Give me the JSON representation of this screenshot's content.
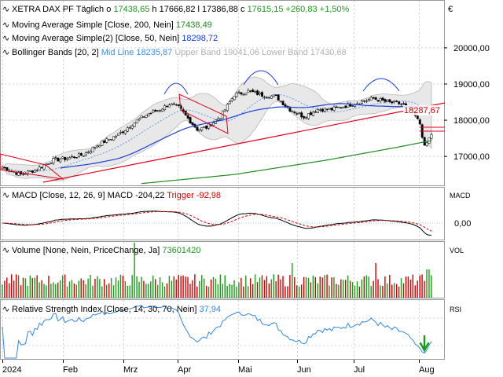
{
  "price_panel": {
    "symbol": "XETRA DAX PF",
    "period": "Täglich",
    "o_label": "o",
    "o": "17438,65",
    "h_label": "h",
    "h": "17666,82",
    "l_label": "l",
    "l": "17386,88",
    "c_label": "c",
    "c": "17615,15",
    "change": "+260,83",
    "change_pct": "+1,50%",
    "currency": "€",
    "ma200_label": "Moving Average Simple [Close, 200, Nein]",
    "ma200_value": "17438,49",
    "ma50_label": "Moving Average Simple(2) [Close, 50, Nein]",
    "ma50_value": "18298,72",
    "bb_label": "Bollinger Bands [20, 2]",
    "bb_mid": "Mid Line 18235,87",
    "bb_upper": "Upper Band 19041,06",
    "bb_lower": "Lower Band 17430,68",
    "price_tag": "18287,67"
  },
  "macd_panel": {
    "label": "MACD [Close, 12, 26, 9]",
    "macd_value": "MACD -204,22",
    "trigger_value": "Trigger -92,98",
    "axis_name": "MACD"
  },
  "volume_panel": {
    "label": "Volume [None, Nein, PriceChange, Ja]",
    "value": "73601420",
    "axis_name": "VOL"
  },
  "rsi_panel": {
    "label": "Relative Strength Index [Close, 14, 30, 70, Nein]",
    "value": "37,94",
    "axis_name": "RSI"
  },
  "colors": {
    "up": "#1a9c1a",
    "down": "#d40000",
    "ma200": "#1f8a1f",
    "ma50": "#1a3fd6",
    "trend": "#e0001a",
    "bb_mid": "#3a8ee6",
    "bb_band": "#c8c8c8",
    "macd": "#000000",
    "trigger": "#d40000",
    "rsi": "#2f86e6",
    "axis_text": "#000000"
  },
  "chart_data": {
    "type": "line",
    "x_ticks": [
      "2024",
      "Feb",
      "Mrz",
      "Apr",
      "Mai",
      "Jun",
      "Jul",
      "Aug"
    ],
    "price_axis": {
      "ticks": [
        "20000,00",
        "19000,00",
        "18000,00",
        "17000,00"
      ],
      "tick_values": [
        20000,
        19000,
        18000,
        17000
      ],
      "ylim": [
        16200,
        21300
      ]
    },
    "macd_axis": {
      "ticks": [
        "0,00"
      ],
      "tick_values": [
        0
      ]
    },
    "price_series": {
      "name": "XETRA DAX PF",
      "approx_close_path": [
        [
          0,
          16700
        ],
        [
          8,
          16500
        ],
        [
          15,
          16650
        ],
        [
          22,
          16900
        ],
        [
          28,
          16950
        ],
        [
          35,
          17050
        ],
        [
          42,
          17350
        ],
        [
          50,
          17600
        ],
        [
          56,
          17900
        ],
        [
          62,
          18150
        ],
        [
          68,
          18300
        ],
        [
          72,
          18450
        ],
        [
          76,
          18350
        ],
        [
          80,
          18050
        ],
        [
          84,
          17750
        ],
        [
          88,
          17800
        ],
        [
          94,
          18100
        ],
        [
          100,
          18700
        ],
        [
          106,
          18800
        ],
        [
          112,
          18700
        ],
        [
          118,
          18650
        ],
        [
          124,
          18300
        ],
        [
          130,
          18100
        ],
        [
          136,
          18300
        ],
        [
          142,
          18300
        ],
        [
          148,
          18400
        ],
        [
          154,
          18500
        ],
        [
          160,
          18600
        ],
        [
          166,
          18500
        ],
        [
          172,
          18450
        ],
        [
          176,
          18300
        ],
        [
          180,
          17900
        ],
        [
          182,
          17250
        ],
        [
          185,
          17615
        ]
      ]
    },
    "ma200_line": [
      [
        60,
        16250
      ],
      [
        100,
        16500
      ],
      [
        140,
        16900
      ],
      [
        170,
        17250
      ],
      [
        185,
        17438
      ]
    ],
    "trend_line": [
      [
        40,
        16700
      ],
      [
        100,
        17550
      ],
      [
        150,
        17950
      ],
      [
        185,
        18300
      ]
    ]
  }
}
